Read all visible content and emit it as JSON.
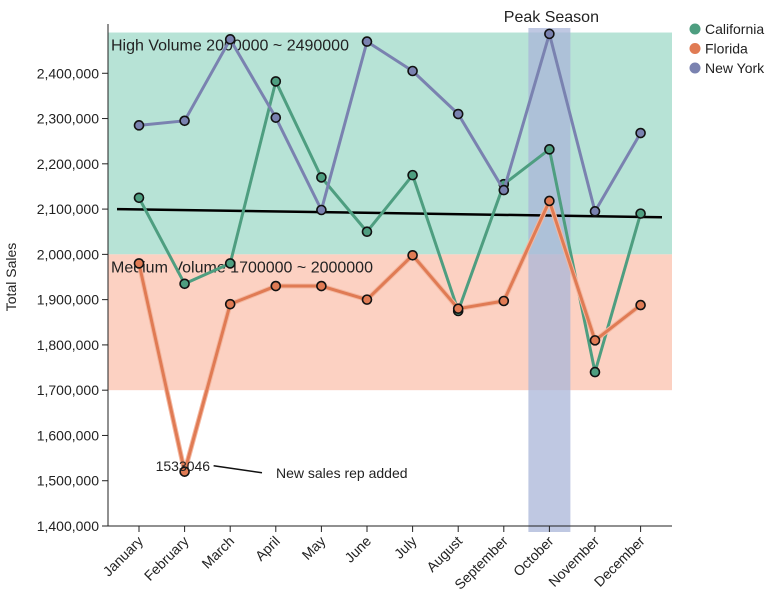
{
  "chart_data": {
    "type": "line",
    "title": "",
    "xlabel": "",
    "ylabel": "Total Sales",
    "ylim": [
      1400000,
      2500000
    ],
    "yticks": [
      1400000,
      1500000,
      1600000,
      1700000,
      1800000,
      1900000,
      2000000,
      2100000,
      2200000,
      2300000,
      2400000
    ],
    "ytick_labels": [
      "1,400,000",
      "1,500,000",
      "1,600,000",
      "1,700,000",
      "1,800,000",
      "1,900,000",
      "2,000,000",
      "2,100,000",
      "2,200,000",
      "2,300,000",
      "2,400,000"
    ],
    "categories": [
      "January",
      "February",
      "March",
      "April",
      "May",
      "June",
      "July",
      "August",
      "September",
      "October",
      "November",
      "December"
    ],
    "series": [
      {
        "name": "California",
        "color": "#4e9e80",
        "values": [
          2125000,
          1935000,
          1980000,
          2382000,
          2170000,
          2050000,
          2175000,
          1875000,
          2155000,
          2232000,
          1740000,
          2090000
        ]
      },
      {
        "name": "Florida",
        "color": "#e07b54",
        "values": [
          1980000,
          1520000,
          1890000,
          1930000,
          1930000,
          1900000,
          1998000,
          1880000,
          1897000,
          2118000,
          1810000,
          1888000
        ]
      },
      {
        "name": "New York",
        "color": "#7a82b0",
        "values": [
          2285000,
          2295000,
          2475000,
          2302000,
          2098000,
          2470000,
          2405000,
          2310000,
          2142000,
          2487000,
          2095000,
          2268000
        ]
      }
    ],
    "trend_line": {
      "start": 2100000,
      "end": 2082000,
      "color": "#000000"
    },
    "bands": [
      {
        "label": "High Volume 2000000 ~ 2490000",
        "from": 2000000,
        "to": 2490000,
        "color": "#b7e3d6"
      },
      {
        "label": "Medium Volume 1700000 ~ 2000000",
        "from": 1700000,
        "to": 2000000,
        "color": "#fcd1c2"
      }
    ],
    "highlight": {
      "label": "Peak Season",
      "category": "October",
      "color": "#a9b6d8"
    },
    "annotation": {
      "value_label": "1533046",
      "text": "New sales rep added",
      "category": "February",
      "value": 1533046
    },
    "legend_position": "top-right",
    "grid": false
  }
}
